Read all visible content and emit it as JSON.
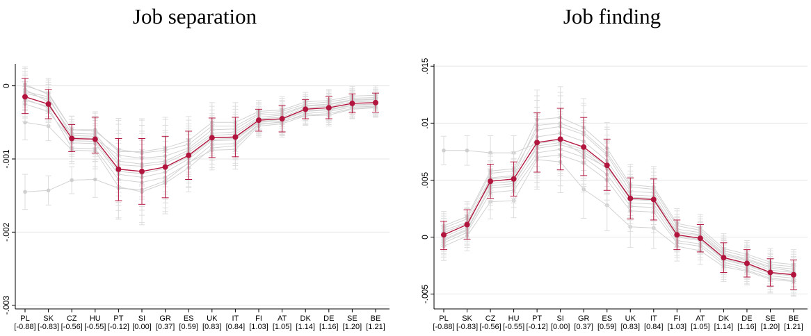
{
  "chart_data": [
    {
      "type": "line",
      "title": "Job separation",
      "xlabel": "",
      "ylabel": "",
      "categories": [
        "PL",
        "SK",
        "CZ",
        "HU",
        "PT",
        "SI",
        "GR",
        "ES",
        "UK",
        "IT",
        "FI",
        "AT",
        "DK",
        "DE",
        "SE",
        "BE"
      ],
      "category_sublabels": [
        "[-0.88]",
        "[-0.83]",
        "[-0.56]",
        "[-0.55]",
        "[-0.12]",
        "[0.00]",
        "[0.37]",
        "[0.59]",
        "[0.83]",
        "[0.84]",
        "[1.03]",
        "[1.05]",
        "[1.14]",
        "[1.16]",
        "[1.20]",
        "[1.21]"
      ],
      "yticks": [
        0,
        -0.001,
        -0.002,
        -0.003
      ],
      "ytick_labels": [
        "0",
        "-.001",
        "-.002",
        "-.003"
      ],
      "ylim": [
        -0.00305,
        0.0003
      ],
      "grid": true,
      "main_series": {
        "values": [
          -0.00015,
          -0.00025,
          -0.00072,
          -0.00073,
          -0.00114,
          -0.00117,
          -0.00111,
          -0.00095,
          -0.00071,
          -0.0007,
          -0.00047,
          -0.00045,
          -0.00032,
          -0.0003,
          -0.00024,
          -0.00023
        ],
        "ci_low": [
          -0.00038,
          -0.00045,
          -0.0009,
          -0.00092,
          -0.00157,
          -0.00162,
          -0.00153,
          -0.00128,
          -0.00098,
          -0.00097,
          -0.00062,
          -0.00063,
          -0.00045,
          -0.00045,
          -0.00037,
          -0.00036
        ],
        "ci_high": [
          0.0001,
          -5e-05,
          -0.00053,
          -0.00043,
          -0.00072,
          -0.00072,
          -0.00069,
          -0.00062,
          -0.00044,
          -0.00043,
          -0.00032,
          -0.00027,
          -0.00019,
          -0.00015,
          -0.00011,
          -0.0001
        ],
        "color": "#b2163f"
      },
      "faint_series": [
        {
          "values": [
            -0.00145,
            -0.00143,
            -0.00129,
            -0.00128,
            -0.0014,
            -0.00142,
            -0.0013,
            -0.00105,
            -0.00088,
            -0.00087,
            -0.00055,
            -0.00052,
            -0.00041,
            -0.0004,
            -0.00032,
            -0.0003
          ]
        },
        {
          "values": [
            -0.0005,
            -0.00055,
            -0.00088,
            -0.00089,
            -0.00138,
            -0.00145,
            -0.00133,
            -0.00112,
            -0.00085,
            -0.00082,
            -0.00053,
            -0.00049,
            -0.0004,
            -0.00038,
            -0.00031,
            -0.00029
          ]
        },
        {
          "values": [
            2e-05,
            -0.00012,
            -0.0006,
            -0.00062,
            -0.00087,
            -0.00092,
            -0.00088,
            -0.0008,
            -0.00055,
            -0.00055,
            -0.00038,
            -0.00035,
            -0.00025,
            -0.00022,
            -0.00017,
            -0.00016
          ]
        },
        {
          "values": [
            -0.0001,
            -0.00018,
            -0.00065,
            -0.00066,
            -0.00103,
            -0.00107,
            -0.00103,
            -0.00088,
            -0.00065,
            -0.00063,
            -0.00043,
            -0.0004,
            -0.00028,
            -0.00026,
            -0.0002,
            -0.00019
          ]
        },
        {
          "values": [
            -5e-05,
            -0.00022,
            -0.00078,
            -0.00079,
            -0.00121,
            -0.00125,
            -0.00118,
            -0.001,
            -0.00075,
            -0.00074,
            -0.0005,
            -0.00048,
            -0.00035,
            -0.00033,
            -0.00027,
            -0.00026
          ]
        },
        {
          "values": [
            -0.00018,
            -0.0003,
            -0.00085,
            -0.00086,
            -0.00128,
            -0.00132,
            -0.00125,
            -0.00106,
            -0.0008,
            -0.00079,
            -0.00052,
            -0.0005,
            -0.00038,
            -0.00035,
            -0.00029,
            -0.00028
          ]
        },
        {
          "values": [
            -0.0002,
            -0.00028,
            -0.00068,
            -0.00069,
            -0.00108,
            -0.0011,
            -0.00106,
            -0.00091,
            -0.00068,
            -0.00066,
            -0.00045,
            -0.00043,
            -0.0003,
            -0.00028,
            -0.00022,
            -0.00021
          ]
        },
        {
          "values": [
            -8e-05,
            -0.00015,
            -0.0007,
            -0.00072,
            -0.00095,
            -0.00099,
            -0.00096,
            -0.00085,
            -0.0006,
            -0.00059,
            -0.0004,
            -0.00038,
            -0.00027,
            -0.00025,
            -0.00019,
            -0.00018
          ]
        },
        {
          "values": [
            -0.00025,
            -0.00035,
            -0.00075,
            -0.00076,
            -0.00117,
            -0.0012,
            -0.00113,
            -0.00097,
            -0.00073,
            -0.00072,
            -0.00049,
            -0.00046,
            -0.00034,
            -0.00032,
            -0.00026,
            -0.00025
          ]
        },
        {
          "values": [
            0.0,
            -0.0001,
            -0.0006,
            -0.0006,
            -0.0009,
            -0.0009,
            -0.00085,
            -0.00075,
            -0.0005,
            -0.0005,
            -0.00035,
            -0.00033,
            -0.00022,
            -0.0002,
            -0.00014,
            -0.00013
          ]
        }
      ]
    },
    {
      "type": "line",
      "title": "Job finding",
      "xlabel": "",
      "ylabel": "",
      "categories": [
        "PL",
        "SK",
        "CZ",
        "HU",
        "PT",
        "SI",
        "GR",
        "ES",
        "UK",
        "IT",
        "FI",
        "AT",
        "DK",
        "DE",
        "SE",
        "BE"
      ],
      "category_sublabels": [
        "[-0.88]",
        "[-0.83]",
        "[-0.56]",
        "[-0.55]",
        "[-0.12]",
        "[0.00]",
        "[0.37]",
        "[0.59]",
        "[0.83]",
        "[0.84]",
        "[1.03]",
        "[1.05]",
        "[1.14]",
        "[1.16]",
        "[1.20]",
        "[1.21]"
      ],
      "yticks": [
        0.015,
        0.01,
        0.005,
        0,
        -0.005
      ],
      "ytick_labels": [
        ".015",
        ".01",
        ".005",
        "0",
        "-.005"
      ],
      "ylim": [
        -0.0063,
        0.0152
      ],
      "grid": true,
      "main_series": {
        "values": [
          0.0002,
          0.0011,
          0.0049,
          0.0051,
          0.0083,
          0.0086,
          0.0079,
          0.0063,
          0.0034,
          0.0033,
          0.0002,
          -0.0001,
          -0.0018,
          -0.0023,
          -0.0031,
          -0.0033
        ],
        "ci_low": [
          -0.0011,
          -0.0002,
          0.0034,
          0.0036,
          0.0057,
          0.0059,
          0.0054,
          0.0041,
          0.0016,
          0.0015,
          -0.0011,
          -0.0013,
          -0.0031,
          -0.0035,
          -0.0043,
          -0.0046
        ],
        "ci_high": [
          0.0014,
          0.0024,
          0.0064,
          0.0066,
          0.0109,
          0.0113,
          0.0105,
          0.0086,
          0.0052,
          0.0051,
          0.0015,
          0.0011,
          -0.0005,
          -0.0011,
          -0.0019,
          -0.002
        ],
        "color": "#b2163f"
      },
      "faint_series": [
        {
          "values": [
            0.0076,
            0.0076,
            0.0074,
            0.0074,
            0.0082,
            0.0085,
            0.0072,
            0.0061,
            0.0035,
            0.0034,
            0.0005,
            0.0002,
            -0.0015,
            -0.002,
            -0.0027,
            -0.003
          ]
        },
        {
          "values": [
            0.0006,
            0.0013,
            0.0052,
            0.0054,
            0.0098,
            0.01,
            0.0092,
            0.0074,
            0.0044,
            0.0042,
            0.001,
            0.0006,
            -0.0012,
            -0.0017,
            -0.0024,
            -0.0026
          ]
        },
        {
          "values": [
            -0.0008,
            0.0001,
            0.0031,
            0.0032,
            0.0068,
            0.0066,
            0.0042,
            0.0028,
            0.0009,
            0.0008,
            -0.0008,
            -0.0012,
            -0.0026,
            -0.003,
            -0.0037,
            -0.0039
          ]
        },
        {
          "values": [
            0.0008,
            0.0016,
            0.0056,
            0.0058,
            0.0094,
            0.0097,
            0.009,
            0.0072,
            0.004,
            0.0039,
            0.0007,
            0.0004,
            -0.0014,
            -0.0019,
            -0.0026,
            -0.0028
          ]
        },
        {
          "values": [
            -0.0003,
            0.0006,
            0.0043,
            0.0045,
            0.0074,
            0.0077,
            0.007,
            0.0055,
            0.0027,
            0.0026,
            -0.0003,
            -0.0006,
            -0.0022,
            -0.0027,
            -0.0034,
            -0.0036
          ]
        },
        {
          "values": [
            0.0004,
            0.0012,
            0.0047,
            0.0049,
            0.0078,
            0.0081,
            0.0075,
            0.006,
            0.003,
            0.0029,
            0.0,
            -0.0003,
            -0.002,
            -0.0025,
            -0.0032,
            -0.0034
          ]
        },
        {
          "values": [
            0.0,
            0.0009,
            0.0051,
            0.0053,
            0.0088,
            0.0091,
            0.0084,
            0.0067,
            0.0037,
            0.0036,
            0.0004,
            0.0001,
            -0.0016,
            -0.0021,
            -0.0029,
            -0.0031
          ]
        },
        {
          "values": [
            -0.0005,
            0.0004,
            0.0039,
            0.0041,
            0.007,
            0.0072,
            0.0065,
            0.005,
            0.0023,
            0.0022,
            -0.0005,
            -0.0008,
            -0.0024,
            -0.0029,
            -0.0036,
            -0.0038
          ]
        },
        {
          "values": [
            0.001,
            0.0018,
            0.0058,
            0.006,
            0.0103,
            0.0105,
            0.0096,
            0.0078,
            0.0046,
            0.0044,
            0.0012,
            0.0008,
            -0.001,
            -0.0015,
            -0.0022,
            -0.0024
          ]
        },
        {
          "values": [
            -0.0002,
            0.0007,
            0.0045,
            0.0047,
            0.008,
            0.0083,
            0.0077,
            0.0062,
            0.0033,
            0.0032,
            0.0001,
            -0.0002,
            -0.0019,
            -0.0024,
            -0.0031,
            -0.0033
          ]
        }
      ]
    }
  ]
}
